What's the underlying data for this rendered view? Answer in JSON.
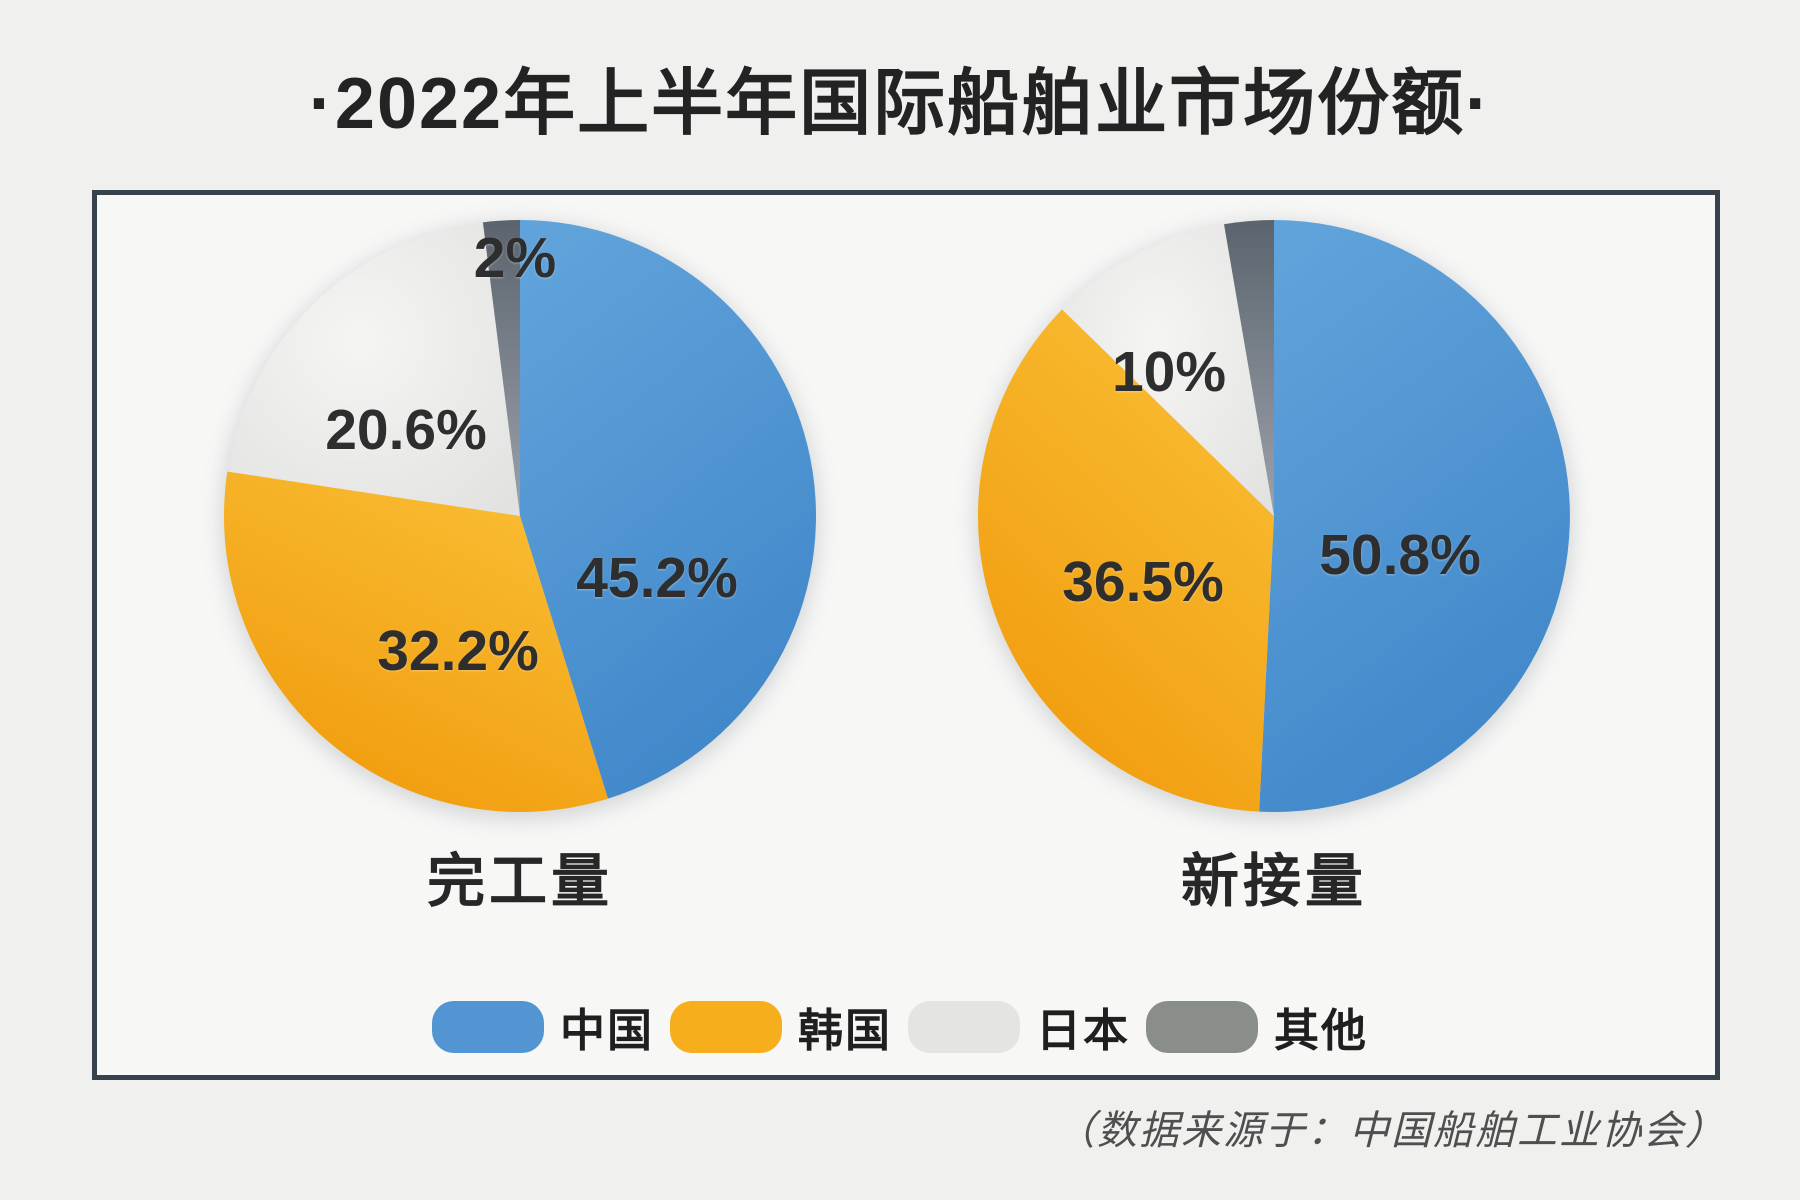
{
  "chart_data": {
    "type": "pie",
    "title": "·2022年上半年国际船舶业市场份额·",
    "source_note": "（数据来源于：中国船舶工业协会）",
    "legend_position": "bottom",
    "palette": {
      "china": "#5295D2",
      "korea": "#F7AE1D",
      "japan": "#E4E4E2",
      "other": "#8A8E89"
    },
    "frame_border_color": "#37424B",
    "background_color": "#F0F0EF",
    "legend": [
      {
        "key": "china",
        "label": "中国"
      },
      {
        "key": "korea",
        "label": "韩国"
      },
      {
        "key": "japan",
        "label": "日本"
      },
      {
        "key": "other",
        "label": "其他"
      }
    ],
    "pies": [
      {
        "name": "完工量",
        "slices": [
          {
            "category": "中国",
            "key": "china",
            "value": 45.2,
            "label": "45.2%"
          },
          {
            "category": "韩国",
            "key": "korea",
            "value": 32.2,
            "label": "32.2%"
          },
          {
            "category": "日本",
            "key": "japan",
            "value": 20.6,
            "label": "20.6%"
          },
          {
            "category": "其他",
            "key": "other",
            "value": 2.0,
            "label": "2%"
          }
        ]
      },
      {
        "name": "新接量",
        "slices": [
          {
            "category": "中国",
            "key": "china",
            "value": 50.8,
            "label": "50.8%"
          },
          {
            "category": "韩国",
            "key": "korea",
            "value": 36.5,
            "label": "36.5%"
          },
          {
            "category": "日本",
            "key": "japan",
            "value": 10.0,
            "label": "10%"
          },
          {
            "category": "其他",
            "key": "other",
            "value": 2.7,
            "label": ""
          }
        ]
      }
    ]
  }
}
